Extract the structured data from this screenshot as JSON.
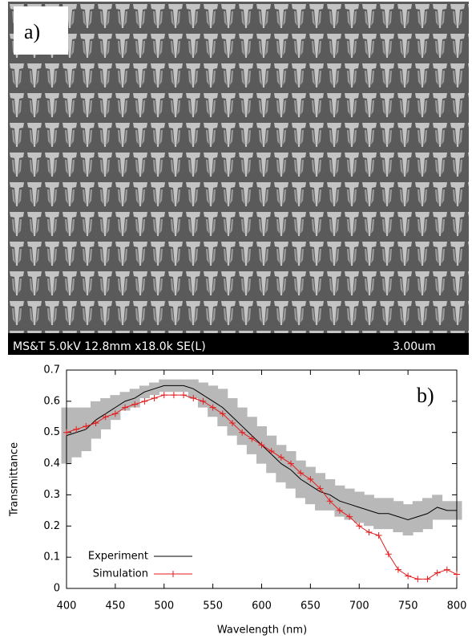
{
  "image": {
    "label": "a)",
    "caption": "MS&T 5.0kV 12.8mm x18.0k SE(L)",
    "scale": "3.00um"
  },
  "chart_data": {
    "type": "line",
    "label": "b)",
    "x_label": "Wavelength (nm)",
    "y_label": "Transmittance",
    "x": [
      400,
      410,
      420,
      430,
      440,
      450,
      460,
      470,
      480,
      490,
      500,
      510,
      520,
      530,
      540,
      550,
      560,
      570,
      580,
      590,
      600,
      610,
      620,
      630,
      640,
      650,
      660,
      670,
      680,
      690,
      700,
      710,
      720,
      730,
      740,
      750,
      760,
      770,
      780,
      790,
      800
    ],
    "series": [
      {
        "name": "Experiment",
        "color": "#000000",
        "band_color": "#b8b8b8",
        "values": [
          0.49,
          0.5,
          0.51,
          0.54,
          0.56,
          0.58,
          0.6,
          0.61,
          0.63,
          0.64,
          0.65,
          0.65,
          0.65,
          0.64,
          0.62,
          0.6,
          0.58,
          0.55,
          0.52,
          0.49,
          0.46,
          0.43,
          0.4,
          0.38,
          0.35,
          0.33,
          0.31,
          0.3,
          0.28,
          0.27,
          0.26,
          0.25,
          0.24,
          0.24,
          0.23,
          0.22,
          0.23,
          0.24,
          0.26,
          0.25,
          0.25
        ],
        "errors": [
          0.09,
          0.08,
          0.07,
          0.06,
          0.05,
          0.04,
          0.03,
          0.03,
          0.02,
          0.02,
          0.02,
          0.02,
          0.02,
          0.03,
          0.04,
          0.05,
          0.06,
          0.06,
          0.06,
          0.06,
          0.06,
          0.06,
          0.06,
          0.06,
          0.06,
          0.06,
          0.06,
          0.05,
          0.05,
          0.05,
          0.05,
          0.05,
          0.05,
          0.05,
          0.05,
          0.05,
          0.05,
          0.05,
          0.04,
          0.03,
          0.03
        ]
      },
      {
        "name": "Simulation",
        "color": "#e41a1c",
        "values": [
          0.5,
          0.51,
          0.52,
          0.53,
          0.55,
          0.56,
          0.58,
          0.59,
          0.6,
          0.61,
          0.62,
          0.62,
          0.62,
          0.61,
          0.6,
          0.58,
          0.56,
          0.53,
          0.5,
          0.48,
          0.46,
          0.44,
          0.42,
          0.4,
          0.37,
          0.35,
          0.32,
          0.28,
          0.25,
          0.23,
          0.2,
          0.18,
          0.17,
          0.11,
          0.06,
          0.04,
          0.03,
          0.03,
          0.05,
          0.06,
          0.045
        ]
      }
    ],
    "xlim": [
      400,
      800
    ],
    "ylim": [
      0,
      0.7
    ],
    "xticks": [
      400,
      450,
      500,
      550,
      600,
      650,
      700,
      750,
      800
    ],
    "yticks": [
      0,
      0.1,
      0.2,
      0.3,
      0.4,
      0.5,
      0.6,
      0.7
    ]
  }
}
